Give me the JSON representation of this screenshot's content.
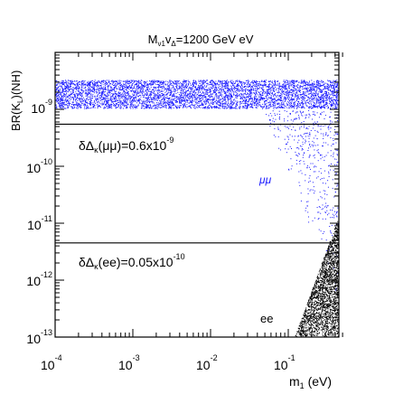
{
  "chart_data": {
    "type": "scatter",
    "title": "M$_{\\nu1}$v$_\\Delta$=1200 GeV eV",
    "title_parts": {
      "main": "M",
      "sub1": "ν1",
      "mid": "v",
      "sub2": "Δ",
      "rest": "=1200 GeV eV"
    },
    "xlabel": "m",
    "xlabel_sub": "1",
    "xlabel_unit": " (eV)",
    "ylabel": "BR(K",
    "ylabel_sub": "L",
    "ylabel_rest": ")(NH)",
    "x_scale": "log",
    "y_scale": "log",
    "xlim": [
      0.0001,
      0.5
    ],
    "ylim": [
      1e-13,
      1e-08
    ],
    "x_tick_labels": [
      {
        "base": "10",
        "exp": "-4",
        "value": 0.0001
      },
      {
        "base": "10",
        "exp": "-3",
        "value": 0.001
      },
      {
        "base": "10",
        "exp": "-2",
        "value": 0.01
      },
      {
        "base": "10",
        "exp": "-1",
        "value": 0.1
      }
    ],
    "y_tick_labels": [
      {
        "base": "10",
        "exp": "-9",
        "value": 1e-09
      },
      {
        "base": "10",
        "exp": "-10",
        "value": 1e-10
      },
      {
        "base": "10",
        "exp": "-11",
        "value": 1e-11
      },
      {
        "base": "10",
        "exp": "-12",
        "value": 1e-12
      },
      {
        "base": "10",
        "exp": "-13",
        "value": 1e-13
      }
    ],
    "reference_lines": [
      {
        "y": 5.5e-10,
        "label_pre": "δΔ",
        "label_sub": "κ",
        "label_arg": "(μμ)=0.6x10",
        "label_exp": "-9"
      },
      {
        "y": 4.5e-12,
        "label_pre": "δΔ",
        "label_sub": "κ",
        "label_arg": "(ee)=0.05x10",
        "label_exp": "-10"
      }
    ],
    "series": [
      {
        "name": "μμ",
        "color": "#1a1aff",
        "band": {
          "x_from": 0.0001,
          "x_to": 0.5,
          "y_low": 1.05e-09,
          "y_high": 3.3e-09
        },
        "tail": {
          "x_from": 0.045,
          "x_to": 0.5,
          "y_low": 3e-13,
          "y_high": 1e-09
        }
      },
      {
        "name": "ee",
        "color": "#000000",
        "region": {
          "x_from": 0.12,
          "x_to": 0.5,
          "y_low": 1e-13,
          "y_high": 2e-11
        }
      }
    ],
    "grid": false,
    "legend": "inline"
  }
}
